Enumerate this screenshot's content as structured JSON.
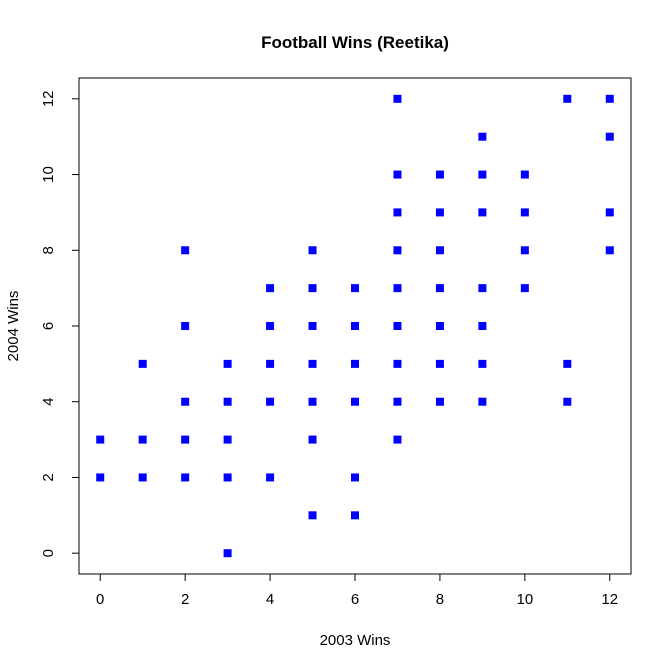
{
  "chart_data": {
    "type": "scatter",
    "title": "Football Wins (Reetika)",
    "xlabel": "2003 Wins",
    "ylabel": "2004 Wins",
    "xlim": [
      -0.5,
      12.5
    ],
    "ylim": [
      -0.55,
      12.55
    ],
    "x_ticks": [
      0,
      2,
      4,
      6,
      8,
      10,
      12
    ],
    "y_ticks": [
      0,
      2,
      4,
      6,
      8,
      10,
      12
    ],
    "x_tick_labels": [
      "0",
      "2",
      "4",
      "6",
      "8",
      "10",
      "12"
    ],
    "y_tick_labels": [
      "0",
      "2",
      "4",
      "6",
      "8",
      "10",
      "12"
    ],
    "grid": false,
    "legend": "none",
    "marker_color": "#0000ff",
    "points": [
      [
        0,
        2
      ],
      [
        0,
        3
      ],
      [
        1,
        2
      ],
      [
        1,
        3
      ],
      [
        1,
        5
      ],
      [
        2,
        2
      ],
      [
        2,
        3
      ],
      [
        2,
        4
      ],
      [
        2,
        6
      ],
      [
        2,
        8
      ],
      [
        3,
        0
      ],
      [
        3,
        2
      ],
      [
        3,
        3
      ],
      [
        3,
        4
      ],
      [
        3,
        5
      ],
      [
        4,
        2
      ],
      [
        4,
        4
      ],
      [
        4,
        5
      ],
      [
        4,
        6
      ],
      [
        4,
        7
      ],
      [
        5,
        1
      ],
      [
        5,
        3
      ],
      [
        5,
        4
      ],
      [
        5,
        5
      ],
      [
        5,
        6
      ],
      [
        5,
        7
      ],
      [
        5,
        8
      ],
      [
        6,
        1
      ],
      [
        6,
        2
      ],
      [
        6,
        4
      ],
      [
        6,
        5
      ],
      [
        6,
        6
      ],
      [
        6,
        7
      ],
      [
        7,
        3
      ],
      [
        7,
        4
      ],
      [
        7,
        5
      ],
      [
        7,
        6
      ],
      [
        7,
        7
      ],
      [
        7,
        8
      ],
      [
        7,
        9
      ],
      [
        7,
        10
      ],
      [
        7,
        12
      ],
      [
        8,
        4
      ],
      [
        8,
        5
      ],
      [
        8,
        6
      ],
      [
        8,
        7
      ],
      [
        8,
        8
      ],
      [
        8,
        9
      ],
      [
        8,
        10
      ],
      [
        9,
        4
      ],
      [
        9,
        5
      ],
      [
        9,
        6
      ],
      [
        9,
        7
      ],
      [
        9,
        9
      ],
      [
        9,
        10
      ],
      [
        9,
        11
      ],
      [
        10,
        7
      ],
      [
        10,
        8
      ],
      [
        10,
        9
      ],
      [
        10,
        10
      ],
      [
        11,
        4
      ],
      [
        11,
        5
      ],
      [
        11,
        12
      ],
      [
        12,
        8
      ],
      [
        12,
        9
      ],
      [
        12,
        11
      ],
      [
        12,
        12
      ]
    ]
  }
}
